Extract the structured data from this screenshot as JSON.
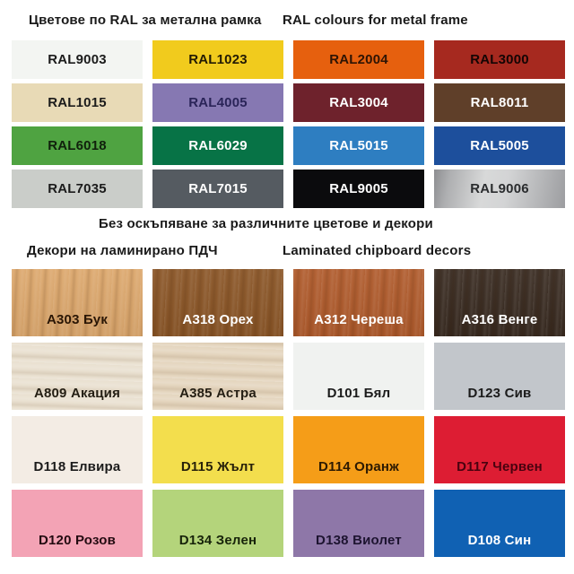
{
  "headers": {
    "ral_bg": "Цветове по RAL за метална рамка",
    "ral_en": "RAL colours for metal frame",
    "note": "Без оскъпяване за различните цветове и декори",
    "decor_bg": "Декори на ламинирано ПДЧ",
    "decor_en": "Laminated chipboard decors"
  },
  "ral_grid": {
    "swatches": [
      {
        "label": "RAL9003",
        "color": "#F3F5F2",
        "text_color": "#1B1B1B",
        "texture": "flat"
      },
      {
        "label": "RAL1023",
        "color": "#F1CB1D",
        "text_color": "#231B04",
        "texture": "flat"
      },
      {
        "label": "RAL2004",
        "color": "#E6600E",
        "text_color": "#2E1404",
        "texture": "flat"
      },
      {
        "label": "RAL3000",
        "color": "#A6291F",
        "text_color": "#140504",
        "texture": "flat"
      },
      {
        "label": "RAL1015",
        "color": "#E8DAB6",
        "text_color": "#1B1B1B",
        "texture": "flat"
      },
      {
        "label": "RAL4005",
        "color": "#8678B2",
        "text_color": "#2A2458",
        "texture": "flat"
      },
      {
        "label": "RAL3004",
        "color": "#6E222C",
        "text_color": "#FFFFFF",
        "texture": "flat"
      },
      {
        "label": "RAL8011",
        "color": "#5F3F29",
        "text_color": "#FFFFFF",
        "texture": "flat"
      },
      {
        "label": "RAL6018",
        "color": "#4FA341",
        "text_color": "#10200C",
        "texture": "flat"
      },
      {
        "label": "RAL6029",
        "color": "#077346",
        "text_color": "#FFFFFF",
        "texture": "flat"
      },
      {
        "label": "RAL5015",
        "color": "#2E7EC1",
        "text_color": "#FFFFFF",
        "texture": "flat"
      },
      {
        "label": "RAL5005",
        "color": "#1D4F9C",
        "text_color": "#FFFFFF",
        "texture": "flat"
      },
      {
        "label": "RAL7035",
        "color": "#CACDC9",
        "text_color": "#1B1B1B",
        "texture": "flat"
      },
      {
        "label": "RAL7015",
        "color": "#555B61",
        "text_color": "#FFFFFF",
        "texture": "flat"
      },
      {
        "label": "RAL9005",
        "color": "#0B0B0D",
        "text_color": "#FFFFFF",
        "texture": "flat"
      },
      {
        "label": "RAL9006",
        "color": "#C0C1C2",
        "text_color": "#2A2C2E",
        "texture": "metallic"
      }
    ]
  },
  "decor_grid": {
    "swatches": [
      {
        "label": "A303 Бук",
        "color": "#DCA76C",
        "text_color": "#2A1605",
        "texture": "wood-v"
      },
      {
        "label": "A318 Орех",
        "color": "#8A5526",
        "text_color": "#FFFFFF",
        "texture": "wood-v"
      },
      {
        "label": "A312 Череша",
        "color": "#AF5A2B",
        "text_color": "#FFFFFF",
        "texture": "wood-v"
      },
      {
        "label": "A316 Венге",
        "color": "#37291F",
        "text_color": "#FFFFFF",
        "texture": "wood-v"
      },
      {
        "label": "A809 Акация",
        "color": "#E9E0D0",
        "text_color": "#241E13",
        "texture": "wood-h"
      },
      {
        "label": "A385 Астра",
        "color": "#E4D5BE",
        "text_color": "#241E13",
        "texture": "wood-h"
      },
      {
        "label": "D101 Бял",
        "color": "#F0F2F0",
        "text_color": "#1B1B1B",
        "texture": "flat"
      },
      {
        "label": "D123 Сив",
        "color": "#C2C6CB",
        "text_color": "#1B1B1B",
        "texture": "flat"
      },
      {
        "label": "D118 Елвира",
        "color": "#F3ECE4",
        "text_color": "#1B1B1B",
        "texture": "flat"
      },
      {
        "label": "D115 Жълт",
        "color": "#F3DE4D",
        "text_color": "#27210A",
        "texture": "flat"
      },
      {
        "label": "D114 Оранж",
        "color": "#F59D18",
        "text_color": "#2D1A02",
        "texture": "flat"
      },
      {
        "label": "D117 Червен",
        "color": "#DD1D33",
        "text_color": "#49020F",
        "texture": "flat"
      },
      {
        "label": "D120 Розов",
        "color": "#F3A3B5",
        "text_color": "#230A10",
        "texture": "flat"
      },
      {
        "label": "D134 Зелен",
        "color": "#B4D47B",
        "text_color": "#17230A",
        "texture": "flat"
      },
      {
        "label": "D138 Виолет",
        "color": "#8E77A8",
        "text_color": "#1D1430",
        "texture": "flat"
      },
      {
        "label": "D108 Син",
        "color": "#1061B3",
        "text_color": "#FFFFFF",
        "texture": "flat"
      }
    ]
  }
}
